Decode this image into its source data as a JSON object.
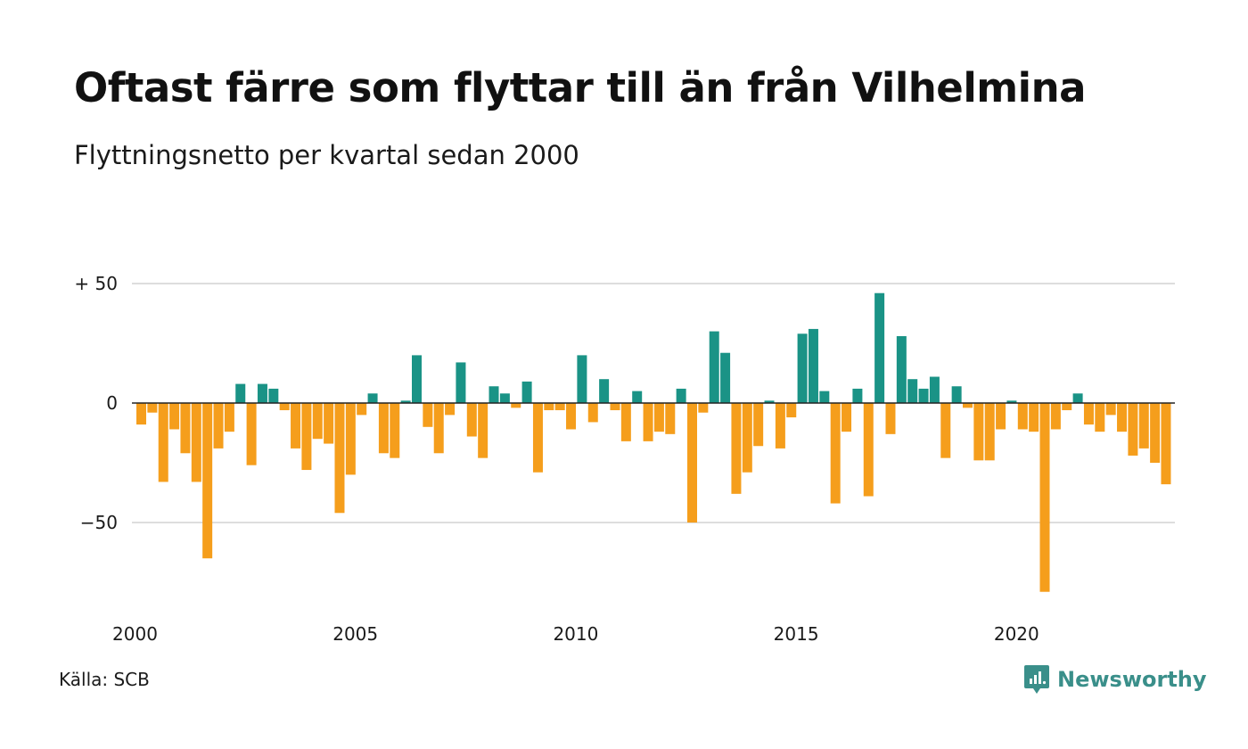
{
  "title": "Oftast färre som flyttar till än från Vilhelmina",
  "subtitle": "Flyttningsnetto per kvartal sedan 2000",
  "source": "Källa: SCB",
  "brand": {
    "name": "Newsworthy",
    "icon": "newsworthy-logo-icon"
  },
  "colors": {
    "positive": "#1a9386",
    "negative": "#f59e1c",
    "grid": "#dddddd",
    "zero": "#222222",
    "brand": "#3a8f8a"
  },
  "chart_data": {
    "type": "bar",
    "x_start": "2000 Q1",
    "x_ticks": [
      "2000",
      "2005",
      "2010",
      "2015",
      "2020"
    ],
    "y_ticks": [
      "+ 50",
      "0",
      "−50"
    ],
    "ylim": [
      -80,
      50
    ],
    "grid": true,
    "values": [
      -9,
      -4,
      -33,
      -11,
      -21,
      -33,
      -65,
      -19,
      -12,
      8,
      -26,
      8,
      6,
      -3,
      -19,
      -28,
      -15,
      -17,
      -46,
      -30,
      -5,
      4,
      -21,
      -23,
      1,
      20,
      -10,
      -21,
      -5,
      17,
      -14,
      -23,
      7,
      4,
      -2,
      9,
      -29,
      -3,
      -3,
      -11,
      20,
      -8,
      10,
      -3,
      -16,
      5,
      -16,
      -12,
      -13,
      6,
      -50,
      -4,
      30,
      21,
      -38,
      -29,
      -18,
      1,
      -19,
      -6,
      29,
      31,
      5,
      -42,
      -12,
      6,
      -39,
      46,
      -13,
      28,
      10,
      6,
      11,
      -23,
      7,
      -2,
      -24,
      -24,
      -11,
      1,
      -11,
      -12,
      -79,
      -11,
      -3,
      4,
      -9,
      -12,
      -5,
      -12,
      -22,
      -19,
      -25,
      -34
    ]
  }
}
